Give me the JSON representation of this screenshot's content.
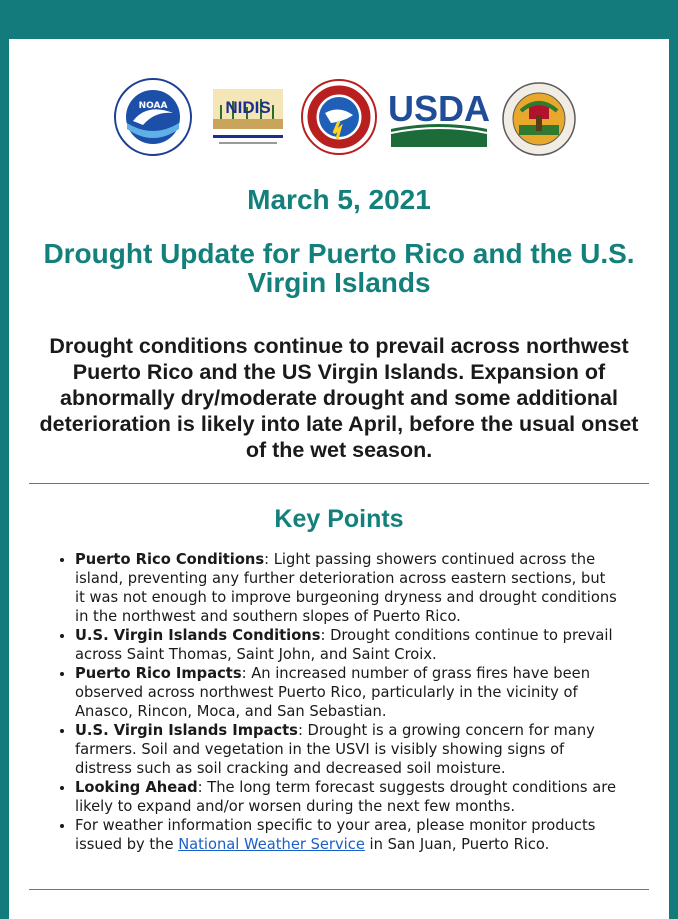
{
  "logos": {
    "noaa_label": "NOAA",
    "nidis_label": "NIDIS",
    "usda_label": "USDA"
  },
  "date": "March 5, 2021",
  "title_line1": "Drought Update for Puerto Rico and the U.S.",
  "title_line2": "Virgin Islands",
  "summary_lines": [
    "Drought conditions continue to prevail across northwest",
    "Puerto Rico and the US Virgin Islands. Expansion of",
    "abnormally dry/moderate drought and some additional",
    "deterioration is likely into late April, before the usual onset",
    "of the wet season."
  ],
  "key_points_heading": "Key Points",
  "key_points": [
    {
      "label": "Puerto Rico Conditions",
      "lines": [
        ": Light passing showers continued across the",
        "island, preventing any further deterioration across eastern sections, but",
        "it was not enough to improve burgeoning dryness and drought conditions",
        "in the northwest and southern slopes of Puerto Rico."
      ]
    },
    {
      "label": "U.S. Virgin Islands Conditions",
      "lines": [
        ": Drought conditions continue to prevail",
        "across Saint Thomas, Saint John, and Saint Croix."
      ]
    },
    {
      "label": "Puerto Rico Impacts",
      "lines": [
        ": An increased number of grass fires have been",
        "observed across northwest Puerto Rico, particularly in the vicinity of",
        "Anasco, Rincon, Moca, and San Sebastian."
      ]
    },
    {
      "label": "U.S. Virgin Islands Impacts",
      "lines": [
        ": Drought is a growing concern for many",
        "farmers. Soil and vegetation in the USVI is visibly showing signs of",
        "distress such as soil cracking and decreased soil moisture."
      ]
    },
    {
      "label": "Looking Ahead",
      "lines": [
        ": The long term forecast suggests drought conditions are",
        "likely to expand and/or worsen during the next few months."
      ]
    }
  ],
  "final_point": {
    "line1": "For weather information specific to your area, please monitor products",
    "prefix": "issued by the ",
    "link_text": "National Weather Service",
    "suffix": " in San Juan, Puerto Rico."
  },
  "colors": {
    "header_band": "#137b7b",
    "accent_teal": "#13807c",
    "link_blue": "#1a5fc8"
  }
}
